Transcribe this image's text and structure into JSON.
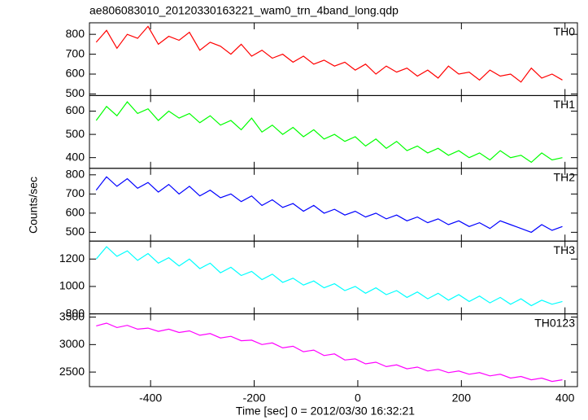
{
  "chart_data": [
    {
      "type": "line",
      "title": "ae806083010_20120330163221_wam0_trn_4band_long.qdp",
      "name": "TH0",
      "color": "#ff0000",
      "x": [
        -505,
        -485,
        -465,
        -445,
        -425,
        -405,
        -385,
        -365,
        -345,
        -325,
        -305,
        -285,
        -265,
        -245,
        -225,
        -205,
        -185,
        -165,
        -145,
        -125,
        -105,
        -85,
        -65,
        -45,
        -25,
        -5,
        15,
        35,
        55,
        75,
        95,
        115,
        135,
        155,
        175,
        195,
        215,
        235,
        255,
        275,
        295,
        315,
        335,
        355,
        375,
        395
      ],
      "values": [
        760,
        820,
        730,
        800,
        780,
        840,
        750,
        790,
        770,
        810,
        720,
        760,
        740,
        700,
        750,
        690,
        720,
        680,
        700,
        660,
        690,
        650,
        670,
        640,
        660,
        620,
        650,
        600,
        640,
        610,
        630,
        590,
        620,
        580,
        640,
        600,
        610,
        570,
        620,
        590,
        600,
        560,
        630,
        580,
        600,
        570
      ],
      "xlim": [
        -518,
        424
      ],
      "ylim": [
        492,
        858
      ],
      "yticks": [
        500,
        600,
        700,
        800
      ]
    },
    {
      "type": "line",
      "name": "TH1",
      "color": "#00ff00",
      "x": [
        -505,
        -485,
        -465,
        -445,
        -425,
        -405,
        -385,
        -365,
        -345,
        -325,
        -305,
        -285,
        -265,
        -245,
        -225,
        -205,
        -185,
        -165,
        -145,
        -125,
        -105,
        -85,
        -65,
        -45,
        -25,
        -5,
        15,
        35,
        55,
        75,
        95,
        115,
        135,
        155,
        175,
        195,
        215,
        235,
        255,
        275,
        295,
        315,
        335,
        355,
        375,
        395
      ],
      "values": [
        560,
        620,
        580,
        640,
        590,
        610,
        560,
        600,
        570,
        590,
        550,
        580,
        540,
        560,
        520,
        570,
        510,
        540,
        500,
        530,
        490,
        520,
        480,
        500,
        470,
        490,
        450,
        480,
        440,
        470,
        430,
        450,
        420,
        440,
        410,
        430,
        400,
        420,
        390,
        430,
        400,
        410,
        380,
        420,
        390,
        400
      ],
      "xlim": [
        -518,
        424
      ],
      "ylim": [
        354,
        667
      ],
      "yticks": [
        400,
        500,
        600
      ]
    },
    {
      "type": "line",
      "name": "TH2",
      "color": "#0000ff",
      "ylabel": "Counts/sec",
      "x": [
        -505,
        -485,
        -465,
        -445,
        -425,
        -405,
        -385,
        -365,
        -345,
        -325,
        -305,
        -285,
        -265,
        -245,
        -225,
        -205,
        -185,
        -165,
        -145,
        -125,
        -105,
        -85,
        -65,
        -45,
        -25,
        -5,
        15,
        35,
        55,
        75,
        95,
        115,
        135,
        155,
        175,
        195,
        215,
        235,
        255,
        275,
        295,
        315,
        335,
        355,
        375,
        395
      ],
      "values": [
        720,
        790,
        740,
        780,
        730,
        760,
        710,
        750,
        700,
        740,
        690,
        720,
        680,
        700,
        660,
        690,
        640,
        670,
        630,
        650,
        610,
        640,
        600,
        620,
        590,
        610,
        580,
        600,
        570,
        590,
        560,
        580,
        550,
        570,
        540,
        560,
        530,
        550,
        520,
        560,
        540,
        520,
        500,
        540,
        510,
        530
      ],
      "xlim": [
        -518,
        424
      ],
      "ylim": [
        454,
        834
      ],
      "yticks": [
        500,
        600,
        700,
        800
      ]
    },
    {
      "type": "line",
      "name": "TH3",
      "color": "#00ffff",
      "x": [
        -505,
        -485,
        -465,
        -445,
        -425,
        -405,
        -385,
        -365,
        -345,
        -325,
        -305,
        -285,
        -265,
        -245,
        -225,
        -205,
        -185,
        -165,
        -145,
        -125,
        -105,
        -85,
        -65,
        -45,
        -25,
        -5,
        15,
        35,
        55,
        75,
        95,
        115,
        135,
        155,
        175,
        195,
        215,
        235,
        255,
        275,
        295,
        315,
        335,
        355,
        375,
        395
      ],
      "values": [
        1200,
        1290,
        1220,
        1260,
        1190,
        1240,
        1170,
        1210,
        1150,
        1200,
        1130,
        1170,
        1100,
        1140,
        1080,
        1110,
        1050,
        1090,
        1030,
        1060,
        1010,
        1040,
        990,
        1020,
        970,
        1000,
        950,
        990,
        940,
        970,
        920,
        960,
        910,
        950,
        900,
        940,
        890,
        930,
        880,
        920,
        870,
        910,
        860,
        900,
        870,
        890
      ],
      "xlim": [
        -518,
        424
      ],
      "ylim": [
        800,
        1331
      ],
      "yticks": [
        800,
        1000,
        1200
      ]
    },
    {
      "type": "line",
      "name": "TH0123",
      "color": "#ff00ff",
      "xlabel": "Time [sec] 0 = 2012/03/30 16:32:21",
      "x": [
        -505,
        -485,
        -465,
        -445,
        -425,
        -405,
        -385,
        -365,
        -345,
        -325,
        -305,
        -285,
        -265,
        -245,
        -225,
        -205,
        -185,
        -165,
        -145,
        -125,
        -105,
        -85,
        -65,
        -45,
        -25,
        -5,
        15,
        35,
        55,
        75,
        95,
        115,
        135,
        155,
        175,
        195,
        215,
        235,
        255,
        275,
        295,
        315,
        335,
        355,
        375,
        395
      ],
      "values": [
        3340,
        3390,
        3310,
        3350,
        3280,
        3300,
        3240,
        3280,
        3220,
        3250,
        3170,
        3200,
        3120,
        3150,
        3070,
        3080,
        3000,
        3030,
        2940,
        2970,
        2870,
        2900,
        2800,
        2830,
        2720,
        2740,
        2650,
        2680,
        2600,
        2630,
        2560,
        2590,
        2520,
        2550,
        2490,
        2520,
        2460,
        2490,
        2430,
        2460,
        2390,
        2420,
        2360,
        2390,
        2330,
        2360
      ],
      "xlim": [
        -518,
        424
      ],
      "ylim": [
        2235,
        3559
      ],
      "yticks": [
        2500,
        3000,
        3500
      ],
      "xticks": [
        -400,
        -200,
        0,
        200,
        400
      ]
    }
  ]
}
